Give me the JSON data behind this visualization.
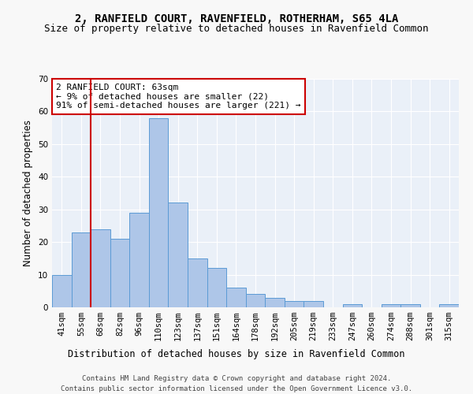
{
  "title1": "2, RANFIELD COURT, RAVENFIELD, ROTHERHAM, S65 4LA",
  "title2": "Size of property relative to detached houses in Ravenfield Common",
  "xlabel": "Distribution of detached houses by size in Ravenfield Common",
  "ylabel": "Number of detached properties",
  "footnote1": "Contains HM Land Registry data © Crown copyright and database right 2024.",
  "footnote2": "Contains public sector information licensed under the Open Government Licence v3.0.",
  "bin_labels": [
    "41sqm",
    "55sqm",
    "68sqm",
    "82sqm",
    "96sqm",
    "110sqm",
    "123sqm",
    "137sqm",
    "151sqm",
    "164sqm",
    "178sqm",
    "192sqm",
    "205sqm",
    "219sqm",
    "233sqm",
    "247sqm",
    "260sqm",
    "274sqm",
    "288sqm",
    "301sqm",
    "315sqm"
  ],
  "bar_values": [
    10,
    23,
    24,
    21,
    29,
    58,
    32,
    15,
    12,
    6,
    4,
    3,
    2,
    2,
    0,
    1,
    0,
    1,
    1,
    0,
    1
  ],
  "bar_color": "#aec6e8",
  "bar_edge_color": "#5b9bd5",
  "vline_color": "#cc0000",
  "annotation_text": "2 RANFIELD COURT: 63sqm\n← 9% of detached houses are smaller (22)\n91% of semi-detached houses are larger (221) →",
  "annotation_box_color": "#ffffff",
  "annotation_box_edge": "#cc0000",
  "ylim": [
    0,
    70
  ],
  "yticks": [
    0,
    10,
    20,
    30,
    40,
    50,
    60,
    70
  ],
  "bg_color": "#eaf0f8",
  "grid_color": "#ffffff",
  "title1_fontsize": 10,
  "title2_fontsize": 9,
  "axis_label_fontsize": 8.5,
  "tick_fontsize": 7.5,
  "annot_fontsize": 8,
  "footnote_fontsize": 6.5
}
